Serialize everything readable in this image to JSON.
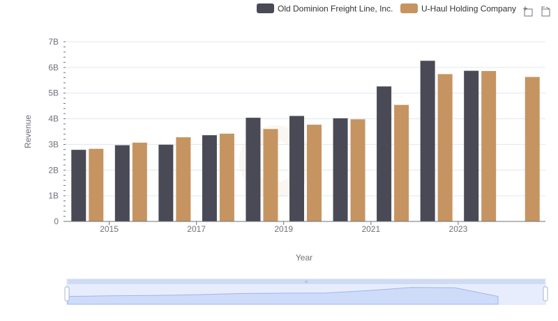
{
  "chart_data": {
    "type": "bar",
    "x": [
      2014,
      2015,
      2016,
      2017,
      2018,
      2019,
      2020,
      2021,
      2022,
      2023,
      2024
    ],
    "x_tick_labels": [
      "2015",
      "2017",
      "2019",
      "2021",
      "2023"
    ],
    "series": [
      {
        "name": "Old Dominion Freight Line, Inc.",
        "color": "#4a4a56",
        "values": [
          2.79,
          2.97,
          2.99,
          3.36,
          4.04,
          4.11,
          4.02,
          5.26,
          6.26,
          5.87,
          null
        ]
      },
      {
        "name": "U-Haul Holding Company",
        "color": "#c69461",
        "values": [
          2.83,
          3.07,
          3.28,
          3.42,
          3.6,
          3.77,
          3.98,
          4.54,
          5.74,
          5.86,
          5.63
        ]
      }
    ],
    "ylim": [
      0,
      7
    ],
    "y_tick_labels": [
      "0",
      "1B",
      "2B",
      "3B",
      "4B",
      "5B",
      "6B",
      "7B"
    ],
    "ylabel": "Revenue",
    "xlabel": "Year",
    "grid": true,
    "legend_position": "top-right",
    "toolbox_icons": [
      "zoom-icon",
      "zoom-reset-icon"
    ],
    "data_zoom": true
  }
}
